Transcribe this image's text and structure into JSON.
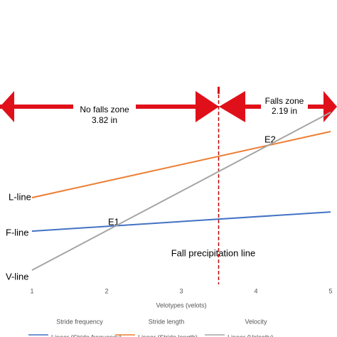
{
  "chart_data": {
    "type": "line",
    "x": [
      1,
      5
    ],
    "xlim": [
      1,
      5
    ],
    "xticks": [
      1,
      2,
      3,
      4,
      5
    ],
    "ylim": [
      0,
      10
    ],
    "x_label": "Velotypes (velots)",
    "series": [
      {
        "name": "Stride frequency",
        "color": "#4472c4",
        "values": [
          2.33,
          3.23
        ]
      },
      {
        "name": "Stride length",
        "color": "#ed7d31",
        "values": [
          3.9,
          7.0
        ]
      },
      {
        "name": "Velocity",
        "color": "#a5a5a5",
        "values": [
          0.5,
          7.9
        ]
      }
    ],
    "trend_legend": [
      "Linear (Stride frequency)",
      "Linear (Stride length)",
      "Linear (Velocity)"
    ],
    "line_labels": [
      "F-line",
      "L-line",
      "V-line"
    ],
    "points": [
      "E1",
      "E2"
    ],
    "fall_line_x": 3.5,
    "fall_line_label": "Fall precipitation line",
    "zones": [
      {
        "name": "No falls zone",
        "size": "3.82 in"
      },
      {
        "name": "Falls zone",
        "size": "2.19 in"
      }
    ]
  }
}
